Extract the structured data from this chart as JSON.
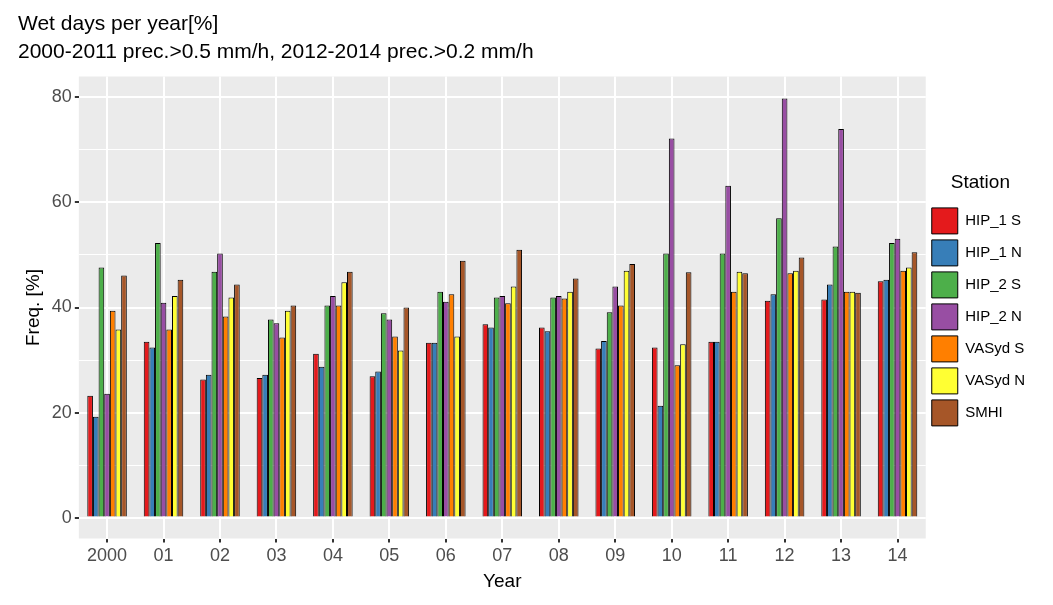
{
  "chart_data": {
    "type": "bar",
    "title": "Wet days per year[%]",
    "subtitle": "2000-2011 prec.>0.5 mm/h, 2012-2014 prec.>0.2 mm/h",
    "xlabel": "Year",
    "ylabel": "Freq. [%]",
    "legend_title": "Station",
    "legend": "right",
    "grid": true,
    "categories": [
      "2000",
      "01",
      "02",
      "03",
      "04",
      "05",
      "06",
      "07",
      "08",
      "09",
      "10",
      "11",
      "12",
      "13",
      "14"
    ],
    "ylim": [
      -4,
      84
    ],
    "yticks": [
      0,
      {
        "value": 10,
        "label": null
      },
      20,
      {
        "value": 30,
        "label": null
      },
      40,
      {
        "value": 50,
        "label": null
      },
      60,
      {
        "value": 70,
        "label": null
      },
      80
    ],
    "series": [
      {
        "name": "HIP_1 S",
        "color": "#e41a1c",
        "values": [
          23.2,
          33.5,
          26.3,
          26.6,
          31.2,
          26.9,
          33.3,
          36.8,
          36.2,
          32.2,
          32.4,
          33.5,
          41.3,
          41.5,
          45.0
        ]
      },
      {
        "name": "HIP_1 N",
        "color": "#377eb8",
        "values": [
          19.2,
          32.4,
          27.2,
          27.2,
          28.7,
          27.8,
          33.3,
          36.2,
          35.5,
          33.6,
          21.3,
          33.5,
          42.5,
          44.4,
          45.3
        ]
      },
      {
        "name": "HIP_2 S",
        "color": "#4daf4a",
        "values": [
          47.6,
          52.3,
          46.8,
          37.7,
          40.4,
          38.9,
          43.0,
          41.9,
          41.9,
          39.1,
          50.3,
          50.3,
          57.0,
          51.6,
          52.3
        ]
      },
      {
        "name": "HIP_2 N",
        "color": "#984ea3",
        "values": [
          23.6,
          40.9,
          50.3,
          37.0,
          42.2,
          37.7,
          41.1,
          42.2,
          42.2,
          44.0,
          72.2,
          63.2,
          79.8,
          74.0,
          53.1
        ]
      },
      {
        "name": "VASyd S",
        "color": "#ff7f00",
        "values": [
          39.4,
          35.8,
          38.3,
          34.3,
          40.4,
          34.5,
          42.5,
          40.8,
          41.7,
          40.4,
          29.0,
          43.0,
          46.5,
          43.0,
          47.0
        ]
      },
      {
        "name": "VASyd N",
        "color": "#ffff33",
        "values": [
          35.8,
          42.2,
          41.9,
          39.4,
          44.8,
          31.8,
          34.5,
          44.0,
          43.0,
          47.0,
          33.0,
          46.8,
          47.0,
          43.0,
          47.6
        ]
      },
      {
        "name": "SMHI",
        "color": "#a65628",
        "values": [
          46.1,
          45.3,
          44.4,
          40.4,
          46.8,
          40.0,
          48.9,
          51.0,
          45.5,
          48.3,
          46.7,
          46.5,
          49.5,
          42.8,
          50.5
        ]
      }
    ]
  }
}
